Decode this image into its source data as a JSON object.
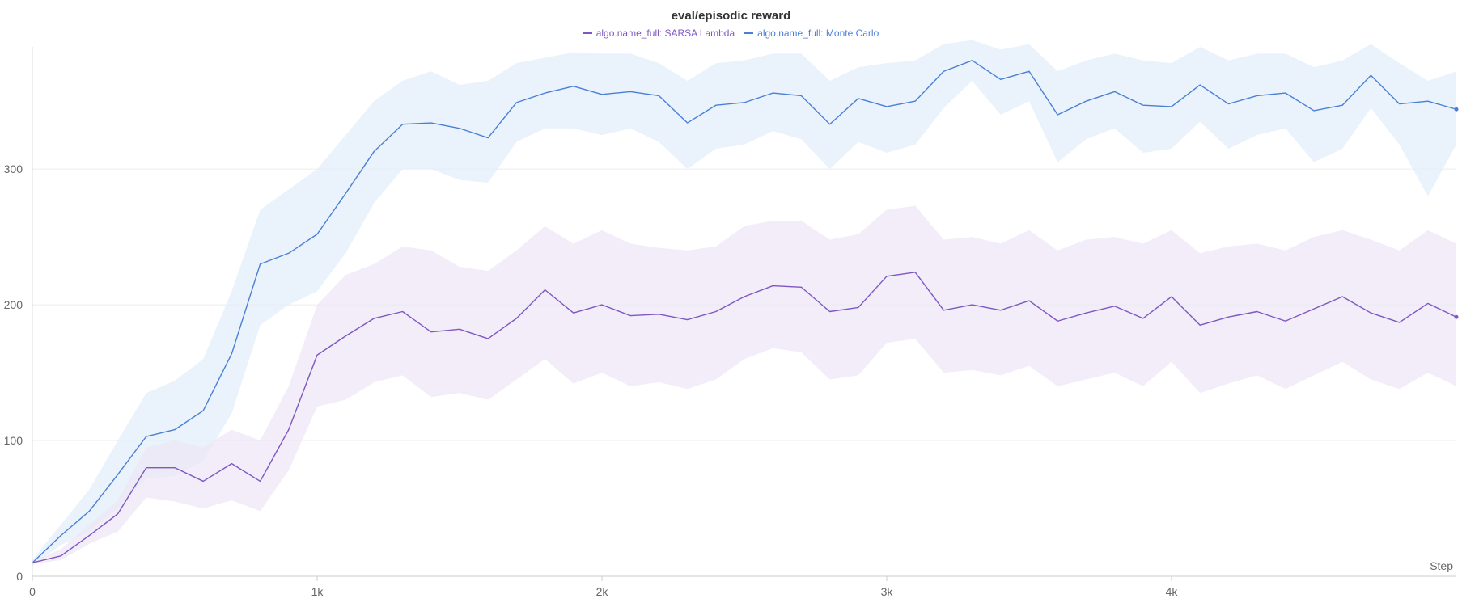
{
  "chart_data": {
    "type": "line",
    "title": "eval/episodic reward",
    "xlabel": "Step",
    "ylabel": "",
    "xlim": [
      0,
      5000
    ],
    "ylim": [
      0,
      390
    ],
    "x_ticks": [
      0,
      1000,
      2000,
      3000,
      4000
    ],
    "x_tick_labels": [
      "0",
      "1k",
      "2k",
      "3k",
      "4k"
    ],
    "y_ticks": [
      0,
      100,
      200,
      300
    ],
    "y_tick_labels": [
      "0",
      "100",
      "200",
      "300"
    ],
    "grid": "horizontal",
    "legend_position": "top-center",
    "series": [
      {
        "name": "algo.name_full: SARSA Lambda",
        "color": "#7e57c2",
        "band_color": "#ede7f6",
        "x": [
          0,
          100,
          200,
          300,
          400,
          500,
          600,
          700,
          800,
          900,
          1000,
          1100,
          1200,
          1300,
          1400,
          1500,
          1600,
          1700,
          1800,
          1900,
          2000,
          2100,
          2200,
          2300,
          2400,
          2500,
          2600,
          2700,
          2800,
          2900,
          3000,
          3100,
          3200,
          3300,
          3400,
          3500,
          3600,
          3700,
          3800,
          3900,
          4000,
          4100,
          4200,
          4300,
          4400,
          4500,
          4600,
          4700,
          4800,
          4900,
          5000
        ],
        "values": [
          10,
          15,
          30,
          46,
          80,
          80,
          70,
          83,
          70,
          108,
          163,
          177,
          190,
          195,
          180,
          182,
          175,
          190,
          211,
          194,
          200,
          192,
          193,
          189,
          195,
          206,
          214,
          213,
          195,
          198,
          221,
          224,
          196,
          200,
          196,
          203,
          188,
          194,
          199,
          190,
          206,
          185,
          191,
          195,
          188,
          197,
          206,
          194,
          187,
          201,
          191
        ],
        "upper": [
          11,
          20,
          38,
          56,
          95,
          100,
          95,
          108,
          100,
          140,
          200,
          222,
          230,
          243,
          240,
          228,
          225,
          240,
          258,
          245,
          255,
          245,
          242,
          240,
          243,
          258,
          262,
          262,
          248,
          252,
          270,
          273,
          248,
          250,
          245,
          255,
          240,
          248,
          250,
          245,
          255,
          238,
          243,
          245,
          240,
          250,
          255,
          248,
          240,
          255,
          245
        ],
        "lower": [
          9,
          12,
          24,
          33,
          58,
          55,
          50,
          56,
          48,
          78,
          125,
          130,
          143,
          148,
          132,
          135,
          130,
          145,
          160,
          142,
          150,
          140,
          143,
          138,
          145,
          160,
          168,
          165,
          145,
          148,
          172,
          175,
          150,
          152,
          148,
          155,
          140,
          145,
          150,
          140,
          158,
          135,
          142,
          148,
          138,
          148,
          158,
          145,
          138,
          150,
          140
        ]
      },
      {
        "name": "algo.name_full: Monte Carlo",
        "color": "#4a7fd6",
        "band_color": "#e3edfb",
        "x": [
          0,
          100,
          200,
          300,
          400,
          500,
          600,
          700,
          800,
          900,
          1000,
          1100,
          1200,
          1300,
          1400,
          1500,
          1600,
          1700,
          1800,
          1900,
          2000,
          2100,
          2200,
          2300,
          2400,
          2500,
          2600,
          2700,
          2800,
          2900,
          3000,
          3100,
          3200,
          3300,
          3400,
          3500,
          3600,
          3700,
          3800,
          3900,
          4000,
          4100,
          4200,
          4300,
          4400,
          4500,
          4600,
          4700,
          4800,
          4900,
          5000
        ],
        "values": [
          10,
          30,
          48,
          75,
          103,
          108,
          122,
          164,
          230,
          238,
          252,
          282,
          313,
          333,
          334,
          330,
          323,
          349,
          356,
          361,
          355,
          357,
          354,
          334,
          347,
          349,
          356,
          354,
          333,
          352,
          346,
          350,
          372,
          380,
          366,
          372,
          340,
          350,
          357,
          347,
          346,
          362,
          348,
          354,
          356,
          343,
          347,
          369,
          348,
          350,
          344
        ],
        "upper": [
          12,
          38,
          64,
          100,
          135,
          144,
          160,
          210,
          270,
          285,
          300,
          325,
          350,
          365,
          372,
          362,
          365,
          378,
          382,
          386,
          385,
          385,
          378,
          365,
          378,
          380,
          385,
          385,
          365,
          375,
          378,
          380,
          392,
          395,
          388,
          392,
          372,
          380,
          385,
          380,
          378,
          390,
          380,
          385,
          385,
          375,
          380,
          392,
          378,
          365,
          372
        ],
        "lower": [
          8,
          23,
          33,
          50,
          72,
          74,
          85,
          120,
          185,
          200,
          210,
          238,
          275,
          300,
          300,
          292,
          290,
          320,
          330,
          330,
          325,
          330,
          320,
          300,
          315,
          318,
          328,
          322,
          300,
          320,
          312,
          318,
          345,
          365,
          340,
          350,
          305,
          322,
          330,
          312,
          315,
          335,
          315,
          325,
          330,
          305,
          315,
          345,
          318,
          280,
          318
        ]
      }
    ]
  }
}
